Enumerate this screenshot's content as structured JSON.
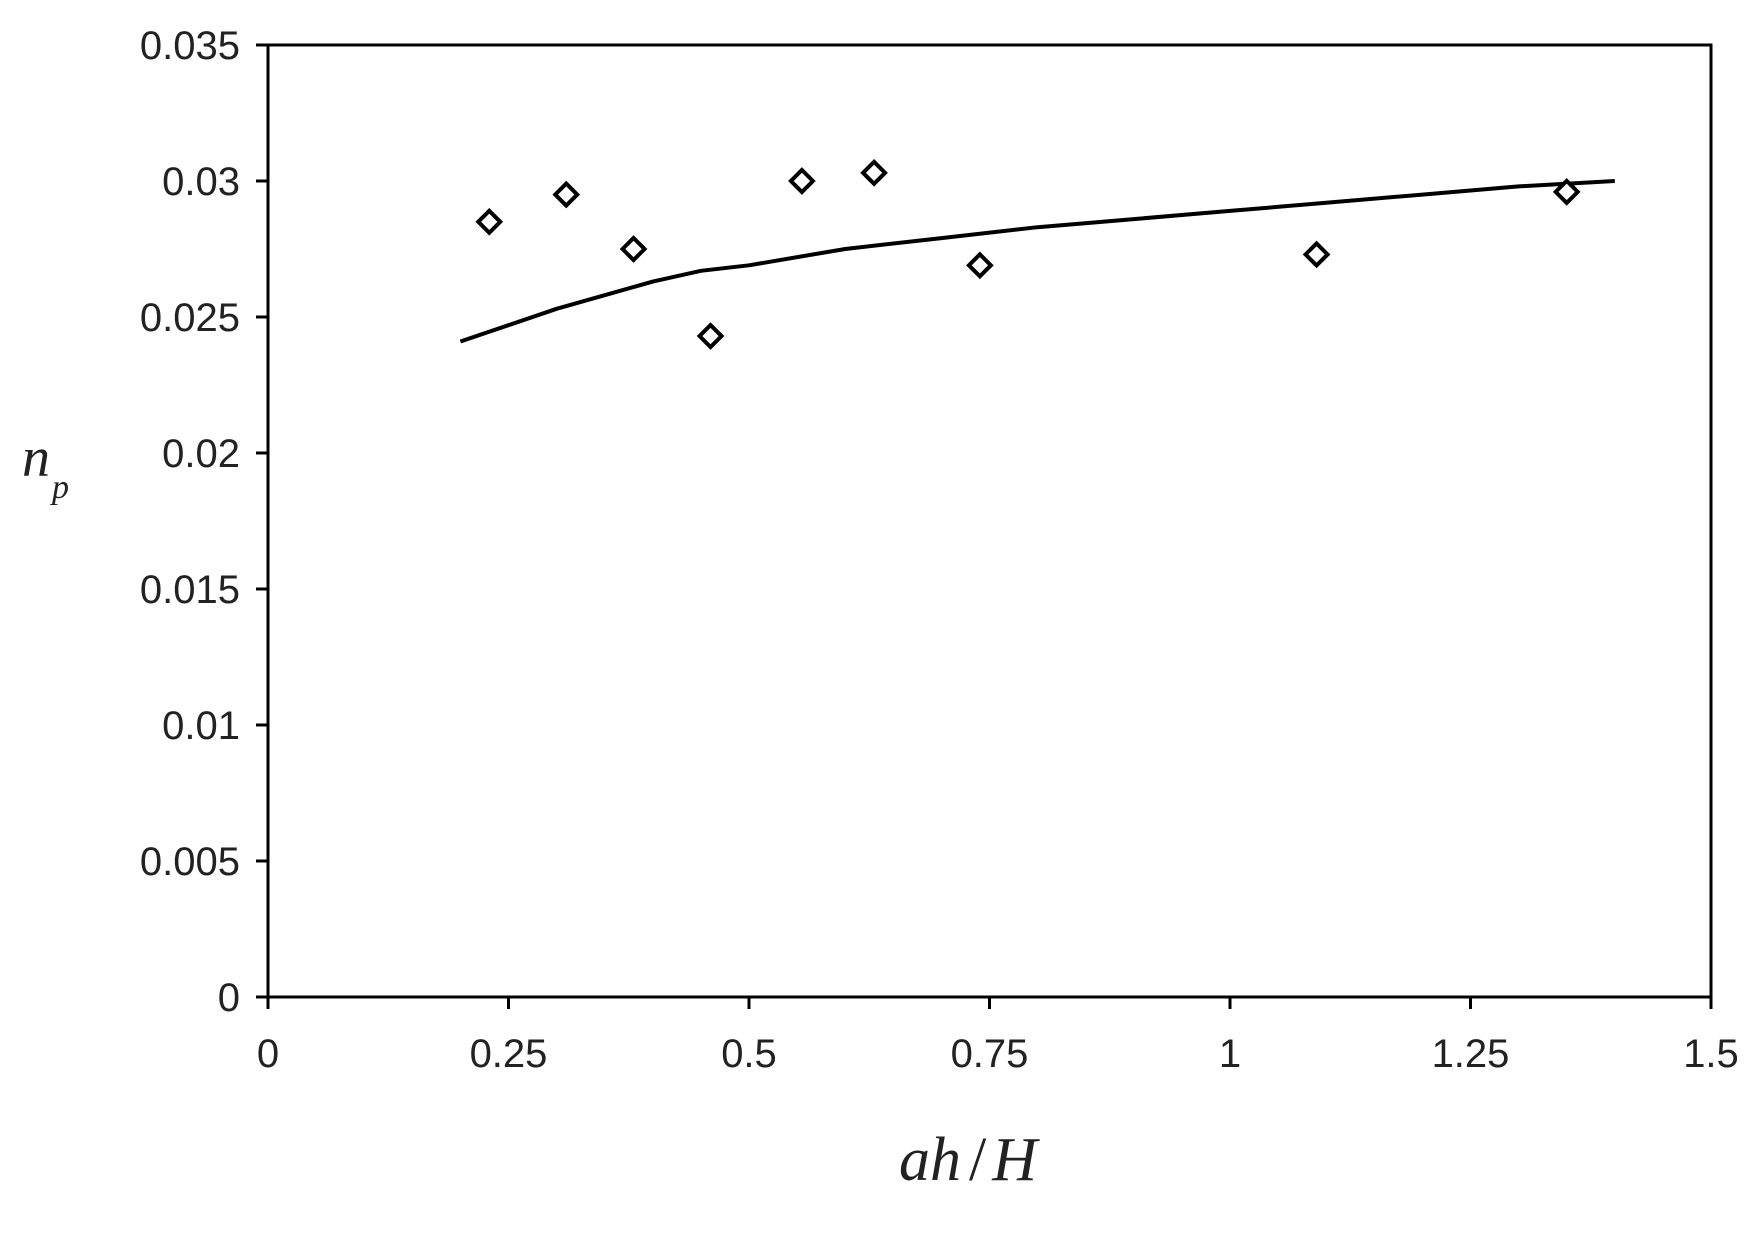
{
  "chart_data": {
    "type": "scatter",
    "title": "",
    "xlabel": {
      "a": "ah",
      "b": "H"
    },
    "ylabel": {
      "main": "n",
      "sub": "p"
    },
    "xlim": [
      0,
      1.5
    ],
    "ylim": [
      0,
      0.035
    ],
    "x_ticks": [
      {
        "value": 0,
        "label": "0"
      },
      {
        "value": 0.25,
        "label": "0.25"
      },
      {
        "value": 0.5,
        "label": "0.5"
      },
      {
        "value": 0.75,
        "label": "0.75"
      },
      {
        "value": 1,
        "label": "1"
      },
      {
        "value": 1.25,
        "label": "1.25"
      },
      {
        "value": 1.5,
        "label": "1.5"
      }
    ],
    "y_ticks": [
      {
        "value": 0,
        "label": "0"
      },
      {
        "value": 0.005,
        "label": "0.005"
      },
      {
        "value": 0.01,
        "label": "0.01"
      },
      {
        "value": 0.015,
        "label": "0.015"
      },
      {
        "value": 0.02,
        "label": "0.02"
      },
      {
        "value": 0.025,
        "label": "0.025"
      },
      {
        "value": 0.03,
        "label": "0.03"
      },
      {
        "value": 0.035,
        "label": "0.035"
      }
    ],
    "grid": false,
    "legend": "none",
    "series": [
      {
        "kind": "scatter",
        "marker": "diamond-open",
        "color": "#000000",
        "x": [
          0.23,
          0.31,
          0.38,
          0.46,
          0.555,
          0.63,
          0.74,
          1.09,
          1.35
        ],
        "y": [
          0.0285,
          0.0295,
          0.0275,
          0.0243,
          0.03,
          0.0303,
          0.0269,
          0.0273,
          0.0296
        ]
      },
      {
        "kind": "line",
        "color": "#000000",
        "x": [
          0.2,
          0.25,
          0.3,
          0.35,
          0.4,
          0.45,
          0.5,
          0.6,
          0.7,
          0.8,
          0.9,
          1.0,
          1.1,
          1.2,
          1.3,
          1.4
        ],
        "y": [
          0.0241,
          0.0247,
          0.0253,
          0.0258,
          0.0263,
          0.0267,
          0.0269,
          0.0275,
          0.0279,
          0.0283,
          0.0286,
          0.0289,
          0.0292,
          0.0295,
          0.0298,
          0.03
        ]
      }
    ]
  }
}
